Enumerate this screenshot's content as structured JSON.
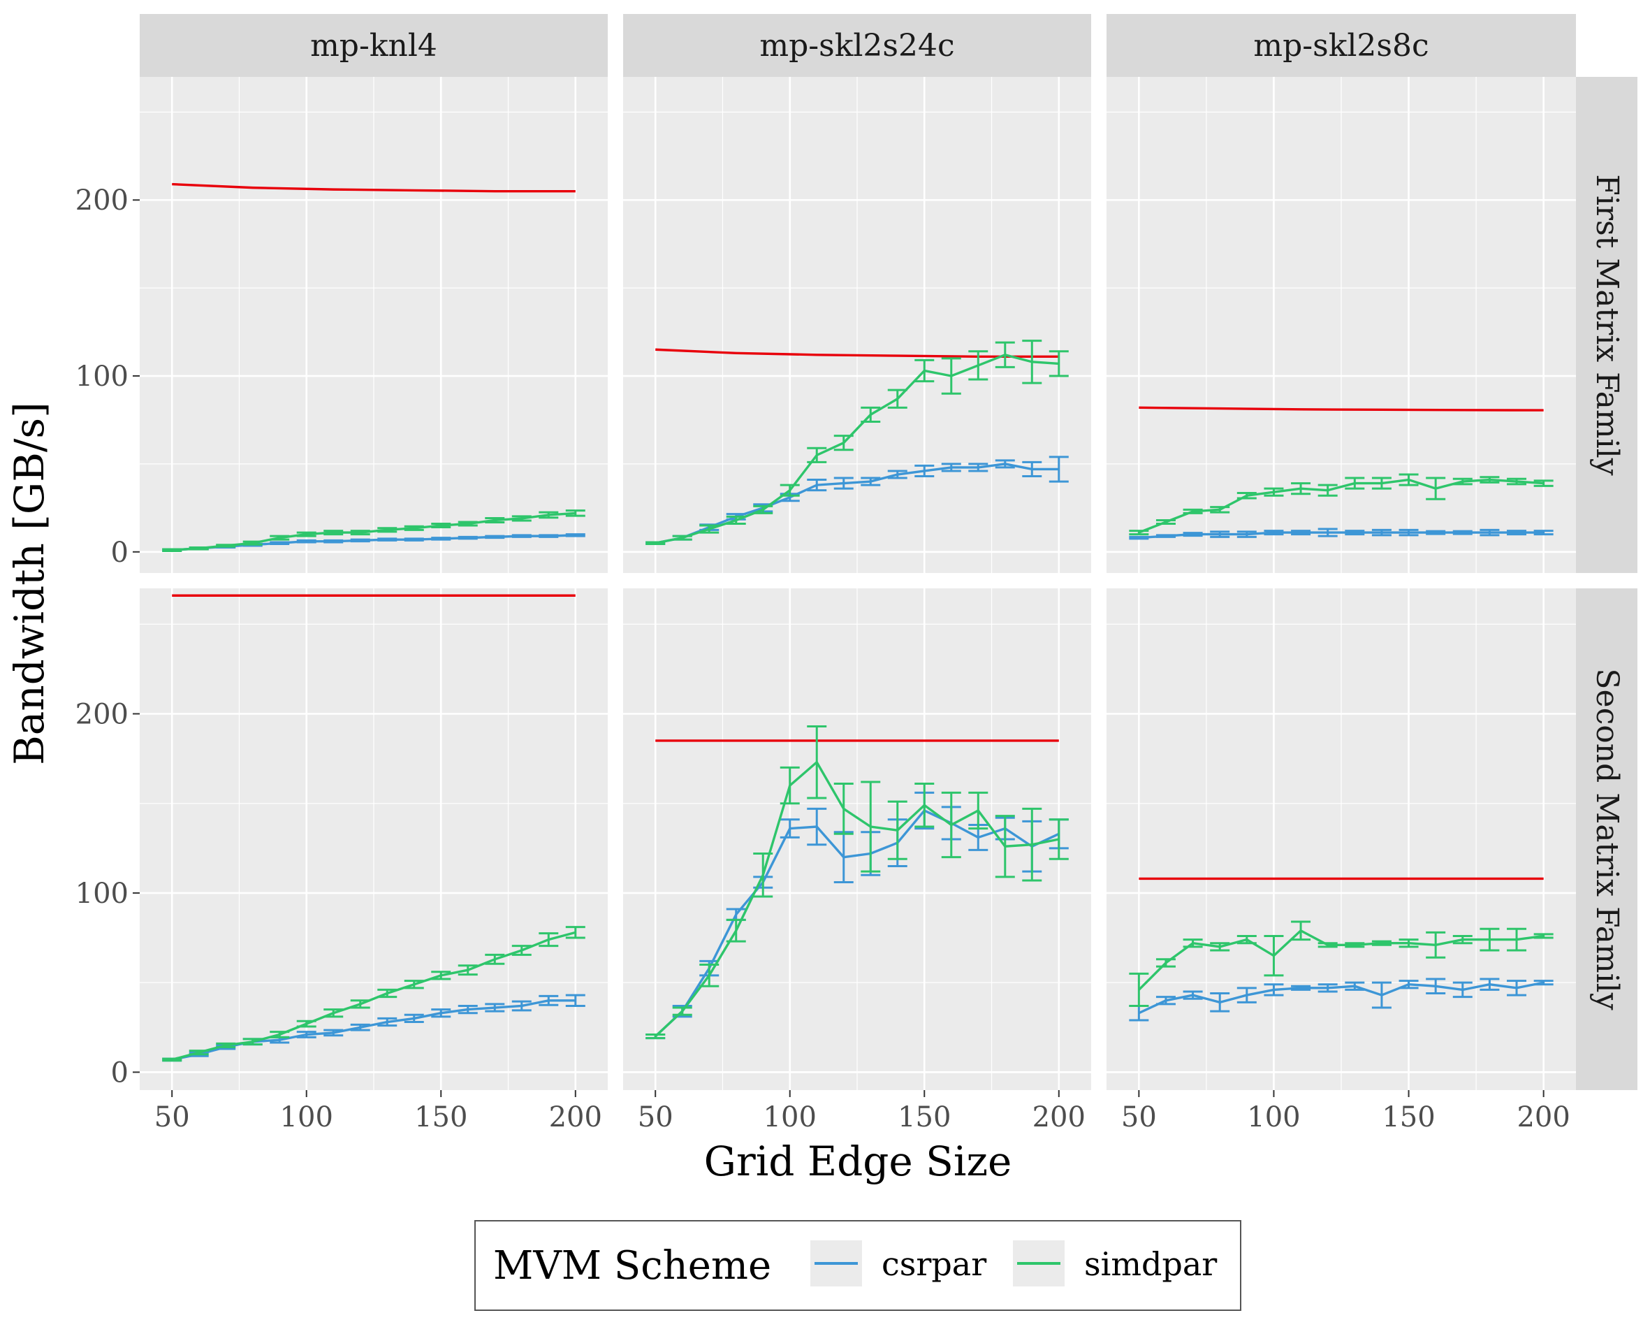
{
  "chart_data": {
    "type": "line",
    "xlabel": "Grid Edge Size",
    "ylabel": "Bandwidth [GB/s]",
    "x_ticks": [
      50,
      100,
      150,
      200
    ],
    "y_ticks": [
      0,
      100,
      200
    ],
    "xlim": [
      38,
      212
    ],
    "row_ylim": [
      [
        -12,
        270
      ],
      [
        -10,
        270
      ]
    ],
    "grid": true,
    "legend": {
      "title": "MVM Scheme",
      "position": "bottom",
      "entries": [
        {
          "name": "csrpar",
          "color": "#3d96d6"
        },
        {
          "name": "simdpar",
          "color": "#2ec56b"
        }
      ]
    },
    "colors": {
      "csrpar": "#3d96d6",
      "simdpar": "#2ec56b",
      "reference": "#e8000b"
    },
    "columns": [
      "mp-knl4",
      "mp-skl2s24c",
      "mp-skl2s8c"
    ],
    "rows": [
      "First Matrix Family",
      "Second Matrix Family"
    ],
    "x": [
      50,
      60,
      70,
      80,
      90,
      100,
      110,
      120,
      130,
      140,
      150,
      160,
      170,
      180,
      190,
      200
    ],
    "panels": [
      {
        "column": "mp-knl4",
        "row": "First Matrix Family",
        "reference": {
          "x": [
            50,
            80,
            110,
            140,
            170,
            200
          ],
          "y": [
            209,
            207,
            206,
            205.5,
            205,
            205
          ]
        },
        "series": [
          {
            "name": "csrpar",
            "y": [
              1,
              2,
              3,
              4,
              5,
              6,
              6,
              6.5,
              7,
              7,
              7.5,
              8,
              8.5,
              9,
              9,
              9.5
            ],
            "err": [
              0.5,
              0.5,
              0.5,
              0.5,
              0.5,
              0.5,
              0.5,
              0.5,
              0.5,
              0.5,
              0.5,
              0.5,
              0.5,
              0.5,
              0.5,
              0.5
            ]
          },
          {
            "name": "simdpar",
            "y": [
              1,
              2,
              3.5,
              5,
              8,
              10,
              11,
              11,
              12.5,
              13.5,
              15,
              16,
              18,
              19,
              21,
              22
            ],
            "err": [
              0.5,
              0.5,
              0.5,
              0.8,
              1,
              1,
              1,
              1,
              1,
              1,
              1,
              1,
              1.2,
              1.2,
              1.5,
              1.5
            ]
          }
        ]
      },
      {
        "column": "mp-skl2s24c",
        "row": "First Matrix Family",
        "reference": {
          "x": [
            50,
            80,
            110,
            140,
            170,
            200
          ],
          "y": [
            115,
            113,
            112,
            111.5,
            111,
            111
          ]
        },
        "series": [
          {
            "name": "csrpar",
            "y": [
              5,
              8,
              14,
              20,
              25,
              31,
              38,
              39,
              40,
              44,
              46,
              48,
              48,
              50,
              47,
              47
            ],
            "err": [
              0.5,
              1,
              1.5,
              1.5,
              2,
              2,
              3,
              3,
              2,
              2,
              3,
              2,
              2,
              2,
              4,
              7
            ]
          },
          {
            "name": "simdpar",
            "y": [
              5,
              8,
              13,
              18,
              24,
              35,
              55,
              62,
              78,
              87,
              103,
              100,
              106,
              112,
              108,
              107
            ],
            "err": [
              0.5,
              1,
              2,
              2,
              2,
              3,
              4,
              4,
              4,
              5,
              6,
              10,
              8,
              7,
              12,
              7
            ]
          }
        ]
      },
      {
        "column": "mp-skl2s8c",
        "row": "First Matrix Family",
        "reference": {
          "x": [
            50,
            80,
            110,
            140,
            170,
            200
          ],
          "y": [
            82,
            81.5,
            81,
            80.8,
            80.6,
            80.5
          ]
        },
        "series": [
          {
            "name": "csrpar",
            "y": [
              8,
              9,
              10,
              10,
              10,
              11,
              11,
              11,
              11,
              11,
              11,
              11,
              11,
              11,
              11,
              11
            ],
            "err": [
              0.5,
              0.5,
              0.8,
              1.5,
              1.5,
              1,
              1,
              2,
              1,
              1.5,
              1.5,
              0.8,
              0.8,
              1.5,
              1,
              1
            ]
          },
          {
            "name": "simdpar",
            "y": [
              11,
              17,
              23,
              24,
              32,
              34,
              36,
              35,
              39,
              39,
              41,
              36,
              40,
              41,
              40,
              39
            ],
            "err": [
              1,
              1,
              1,
              1.5,
              1.5,
              2,
              3,
              3,
              3,
              3,
              3,
              6,
              1.5,
              1.5,
              1.5,
              1.5
            ]
          }
        ]
      },
      {
        "column": "mp-knl4",
        "row": "Second Matrix Family",
        "reference": {
          "x": [
            50,
            80,
            110,
            140,
            170,
            200
          ],
          "y": [
            266,
            266,
            266,
            266,
            266,
            266
          ]
        },
        "series": [
          {
            "name": "csrpar",
            "y": [
              7,
              10,
              14,
              17,
              18,
              21,
              22,
              25,
              28,
              30,
              33,
              35,
              36,
              37,
              40,
              40
            ],
            "err": [
              0.5,
              1,
              1,
              1.5,
              1.5,
              1.5,
              1.5,
              1.5,
              2,
              2,
              2,
              2,
              2,
              2.5,
              2.5,
              3
            ]
          },
          {
            "name": "simdpar",
            "y": [
              7,
              11,
              15,
              17,
              21,
              27,
              33,
              38,
              44,
              49,
              54,
              57,
              63,
              68,
              74,
              78
            ],
            "err": [
              0.5,
              1,
              1,
              1.5,
              1.5,
              1.5,
              2,
              2,
              2,
              2,
              2,
              2.5,
              2.5,
              2.5,
              3.5,
              3
            ]
          }
        ]
      },
      {
        "column": "mp-skl2s24c",
        "row": "Second Matrix Family",
        "reference": {
          "x": [
            50,
            80,
            110,
            140,
            170,
            200
          ],
          "y": [
            185,
            185,
            185,
            185,
            185,
            185
          ]
        },
        "series": [
          {
            "name": "csrpar",
            "y": [
              20,
              34,
              58,
              88,
              106,
              136,
              137,
              120,
              122,
              128,
              146,
              139,
              131,
              136,
              126,
              133
            ],
            "err": [
              1,
              3,
              4,
              3,
              3,
              5,
              10,
              14,
              12,
              13,
              10,
              9,
              7,
              6,
              14,
              8
            ]
          },
          {
            "name": "simdpar",
            "y": [
              20,
              34,
              54,
              79,
              110,
              160,
              173,
              147,
              137,
              135,
              149,
              138,
              146,
              126,
              127,
              130
            ],
            "err": [
              1,
              2,
              6,
              6,
              12,
              10,
              20,
              14,
              25,
              16,
              12,
              18,
              10,
              17,
              20,
              11
            ]
          }
        ]
      },
      {
        "column": "mp-skl2s8c",
        "row": "Second Matrix Family",
        "reference": {
          "x": [
            50,
            80,
            110,
            140,
            170,
            200
          ],
          "y": [
            108,
            108,
            108,
            108,
            108,
            108
          ]
        },
        "series": [
          {
            "name": "csrpar",
            "y": [
              33,
              40,
              43,
              39,
              43,
              46,
              47,
              47,
              48,
              43,
              49,
              48,
              46,
              49,
              47,
              50
            ],
            "err": [
              4,
              2,
              2,
              5,
              4,
              3,
              1,
              2,
              2,
              7,
              2,
              4,
              4,
              3,
              4,
              1
            ]
          },
          {
            "name": "simdpar",
            "y": [
              46,
              61,
              72,
              70,
              74,
              65,
              79,
              71,
              71,
              72,
              72,
              71,
              74,
              74,
              74,
              76
            ],
            "err": [
              9,
              2,
              2,
              2,
              2,
              11,
              5,
              1,
              1,
              1,
              2,
              7,
              2,
              6,
              6,
              1
            ]
          }
        ]
      }
    ]
  }
}
